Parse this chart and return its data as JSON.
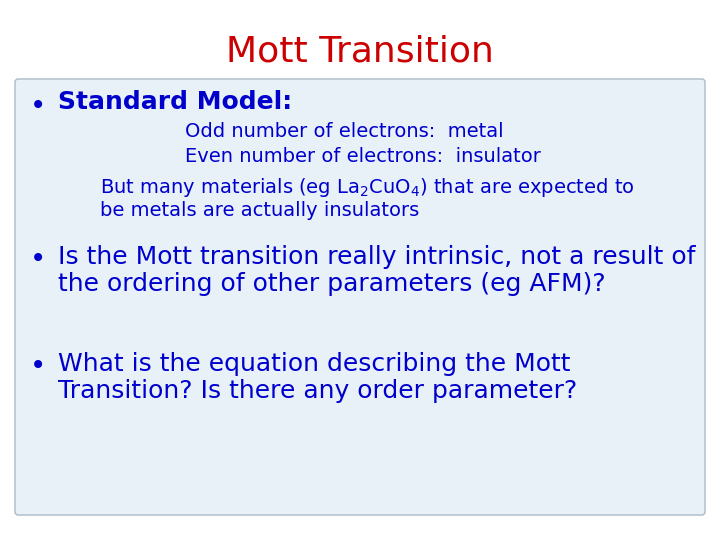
{
  "title": "Mott Transition",
  "title_color": "#cc0000",
  "title_fontsize": 26,
  "bg_color": "#ffffff",
  "box_facecolor": "#e8f0f8",
  "box_edgecolor": "#aabbc8",
  "text_color": "#0000cc",
  "bullet1_header": "Standard Model:",
  "bullet1_header_fontsize": 18,
  "sub1": "Odd number of electrons:  metal",
  "sub2": "Even number of electrons:  insulator",
  "sub3_line1": "But many materials (eg La$_2$CuO$_4$) that are expected to",
  "sub3_line2": "be metals are actually insulators",
  "sub_fontsize": 14,
  "bullet2_line1": "Is the Mott transition really intrinsic, not a result of",
  "bullet2_line2": "the ordering of other parameters (eg AFM)?",
  "bullet2_fontsize": 18,
  "bullet3_line1": "What is the equation describing the Mott",
  "bullet3_line2": "Transition? Is there any order parameter?",
  "bullet3_fontsize": 18
}
